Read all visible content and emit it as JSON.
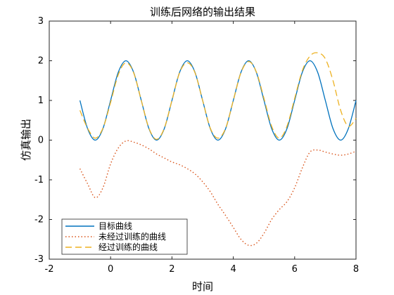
{
  "chart_data": {
    "type": "line",
    "title": "训练后网络的输出结果",
    "xlabel": "时间",
    "ylabel": "仿真输出",
    "xlim": [
      -2,
      8
    ],
    "ylim": [
      -3,
      3
    ],
    "x_ticks": [
      "-2",
      "0",
      "2",
      "4",
      "6",
      "8"
    ],
    "y_ticks": [
      "3",
      "2",
      "1",
      "0",
      "-1",
      "-2",
      "-3"
    ],
    "grid": false,
    "legend_position": "bottom-left",
    "series": [
      {
        "name": "目标曲线",
        "color": "#0072BD",
        "style": "solid",
        "x": [
          -1.0,
          -0.75,
          -0.5,
          -0.25,
          0.0,
          0.25,
          0.5,
          0.75,
          1.0,
          1.25,
          1.5,
          1.75,
          2.0,
          2.25,
          2.5,
          2.75,
          3.0,
          3.25,
          3.5,
          3.75,
          4.0,
          4.25,
          4.5,
          4.75,
          5.0,
          5.25,
          5.5,
          5.75,
          6.0,
          6.25,
          6.5,
          6.75,
          7.0,
          7.25,
          7.5,
          7.75,
          8.0
        ],
        "y": [
          1.0,
          0.29,
          0.0,
          0.29,
          1.0,
          1.71,
          2.0,
          1.71,
          1.0,
          0.29,
          0.0,
          0.29,
          1.0,
          1.71,
          2.0,
          1.71,
          1.0,
          0.29,
          0.0,
          0.29,
          1.0,
          1.71,
          2.0,
          1.71,
          1.0,
          0.29,
          0.0,
          0.29,
          1.0,
          1.71,
          2.0,
          1.71,
          1.0,
          0.29,
          0.0,
          0.29,
          1.0
        ]
      },
      {
        "name": "未经过训练的曲线",
        "color": "#D95319",
        "style": "dotted",
        "x": [
          -1.0,
          -0.75,
          -0.5,
          -0.25,
          0.0,
          0.25,
          0.5,
          0.75,
          1.0,
          1.25,
          1.5,
          1.75,
          2.0,
          2.25,
          2.5,
          2.75,
          3.0,
          3.25,
          3.5,
          3.75,
          4.0,
          4.25,
          4.5,
          4.75,
          5.0,
          5.25,
          5.5,
          5.75,
          6.0,
          6.25,
          6.5,
          6.75,
          7.0,
          7.25,
          7.5,
          7.75,
          8.0
        ],
        "y": [
          -0.72,
          -1.1,
          -1.45,
          -1.2,
          -0.6,
          -0.2,
          -0.02,
          -0.05,
          -0.12,
          -0.22,
          -0.35,
          -0.45,
          -0.55,
          -0.62,
          -0.72,
          -0.85,
          -1.05,
          -1.3,
          -1.62,
          -1.9,
          -2.2,
          -2.5,
          -2.65,
          -2.6,
          -2.35,
          -2.0,
          -1.75,
          -1.55,
          -1.2,
          -0.7,
          -0.3,
          -0.25,
          -0.3,
          -0.35,
          -0.38,
          -0.35,
          -0.28
        ]
      },
      {
        "name": "经过训练的曲线",
        "color": "#EDB120",
        "style": "dashed",
        "x": [
          -1.0,
          -0.75,
          -0.5,
          -0.25,
          0.0,
          0.25,
          0.5,
          0.75,
          1.0,
          1.25,
          1.5,
          1.75,
          2.0,
          2.25,
          2.5,
          2.75,
          3.0,
          3.25,
          3.5,
          3.75,
          4.0,
          4.25,
          4.5,
          4.75,
          5.0,
          5.25,
          5.5,
          5.75,
          6.0,
          6.25,
          6.5,
          6.75,
          7.0,
          7.25,
          7.5,
          7.75,
          8.0
        ],
        "y": [
          0.75,
          0.3,
          0.05,
          0.3,
          0.95,
          1.65,
          1.95,
          1.7,
          1.0,
          0.3,
          0.02,
          0.3,
          1.0,
          1.7,
          1.95,
          1.7,
          1.0,
          0.3,
          0.05,
          0.3,
          1.0,
          1.7,
          1.98,
          1.72,
          1.05,
          0.35,
          0.05,
          0.35,
          1.05,
          1.75,
          2.12,
          2.2,
          2.05,
          1.5,
          0.75,
          0.35,
          0.55
        ]
      }
    ]
  }
}
